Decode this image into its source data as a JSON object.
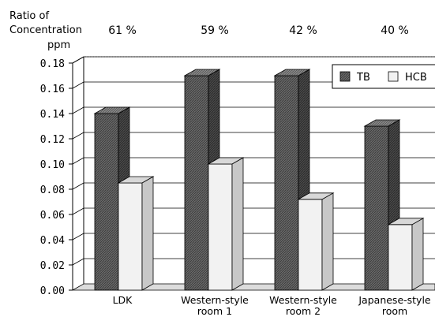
{
  "chart_data": {
    "type": "bar",
    "ylabel_lines": [
      "Ratio of",
      "Concentration"
    ],
    "unit": "ppm",
    "categories": [
      [
        "LDK"
      ],
      [
        "Western-style",
        "room 1"
      ],
      [
        "Western-style",
        "room 2"
      ],
      [
        "Japanese-style",
        "room"
      ]
    ],
    "ratios": [
      "61 %",
      "59 %",
      "42 %",
      "40 %"
    ],
    "series": [
      {
        "name": "TB",
        "values": [
          0.14,
          0.17,
          0.17,
          0.13
        ]
      },
      {
        "name": "HCB",
        "values": [
          0.085,
          0.1,
          0.072,
          0.052
        ]
      }
    ],
    "yticks": [
      "0.00",
      "0.02",
      "0.04",
      "0.06",
      "0.08",
      "0.10",
      "0.12",
      "0.14",
      "0.16",
      "0.18"
    ],
    "ylim": [
      0,
      0.18
    ],
    "grid": true,
    "legend_position": "top-right",
    "colors": {
      "TB": "#5a5a5a",
      "HCB": "#f0f0f0"
    }
  }
}
